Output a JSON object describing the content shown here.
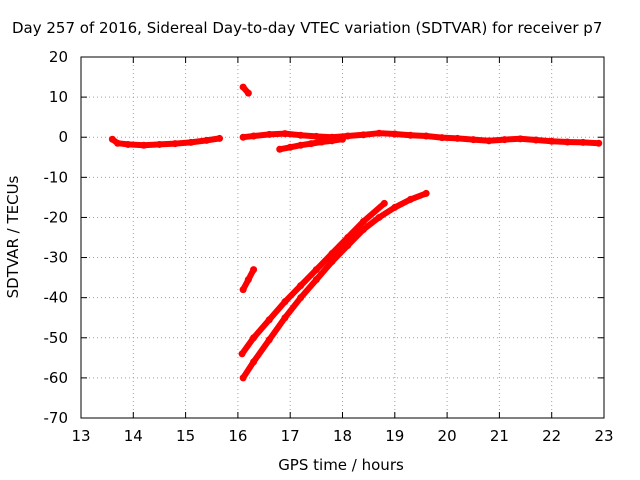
{
  "chart_data": {
    "type": "line",
    "title": "Day 257 of 2016, Sidereal Day-to-day VTEC variation (SDTVAR) for receiver p7",
    "xlabel": "GPS time / hours",
    "ylabel": "SDTVAR / TECUs",
    "xlim": [
      13,
      23
    ],
    "ylim": [
      -70,
      20
    ],
    "xticks": [
      13,
      14,
      15,
      16,
      17,
      18,
      19,
      20,
      21,
      22,
      23
    ],
    "yticks": [
      -70,
      -60,
      -50,
      -40,
      -30,
      -20,
      -10,
      0,
      10,
      20
    ],
    "grid": true,
    "color": "#ff0000",
    "series": [
      {
        "x": [
          13.6,
          13.7,
          13.9,
          14.2,
          14.5,
          14.8,
          15.1,
          15.4,
          15.65
        ],
        "y": [
          -0.5,
          -1.5,
          -1.8,
          -2.0,
          -1.8,
          -1.6,
          -1.3,
          -0.8,
          -0.3
        ]
      },
      {
        "x": [
          16.1,
          16.3,
          16.6,
          16.9,
          17.2,
          17.5,
          17.8,
          18.1,
          18.4,
          18.7,
          19.0,
          19.3,
          19.6,
          19.9,
          20.2,
          20.5,
          20.8,
          21.1,
          21.4,
          21.7,
          22.0,
          22.3,
          22.6,
          22.9
        ],
        "y": [
          0.0,
          0.3,
          0.7,
          0.9,
          0.5,
          0.2,
          0.0,
          0.3,
          0.6,
          1.0,
          0.8,
          0.5,
          0.3,
          -0.1,
          -0.3,
          -0.6,
          -0.9,
          -0.6,
          -0.4,
          -0.7,
          -1.0,
          -1.2,
          -1.3,
          -1.5
        ]
      },
      {
        "x": [
          16.8,
          17.0,
          17.2,
          17.4,
          17.6,
          17.8,
          18.0
        ],
        "y": [
          -3.0,
          -2.5,
          -2.0,
          -1.6,
          -1.2,
          -0.9,
          -0.5
        ]
      },
      {
        "x": [
          16.1,
          16.2
        ],
        "y": [
          12.5,
          11.0
        ]
      },
      {
        "x": [
          16.1,
          16.2,
          16.3
        ],
        "y": [
          -38.0,
          -35.5,
          -33.0
        ]
      },
      {
        "x": [
          16.08,
          16.3,
          16.6,
          16.9,
          17.2,
          17.5,
          17.8,
          18.1,
          18.4,
          18.8
        ],
        "y": [
          -54.0,
          -50.0,
          -45.5,
          -41.0,
          -37.0,
          -33.0,
          -29.0,
          -25.0,
          -21.0,
          -16.5
        ]
      },
      {
        "x": [
          16.1,
          16.3,
          16.6,
          16.9,
          17.2,
          17.5,
          17.8,
          18.1,
          18.4,
          18.7,
          19.0,
          19.3,
          19.6
        ],
        "y": [
          -60.0,
          -56.0,
          -50.5,
          -45.0,
          -40.0,
          -35.5,
          -31.0,
          -27.0,
          -23.0,
          -20.0,
          -17.5,
          -15.5,
          -14.0
        ]
      }
    ]
  }
}
